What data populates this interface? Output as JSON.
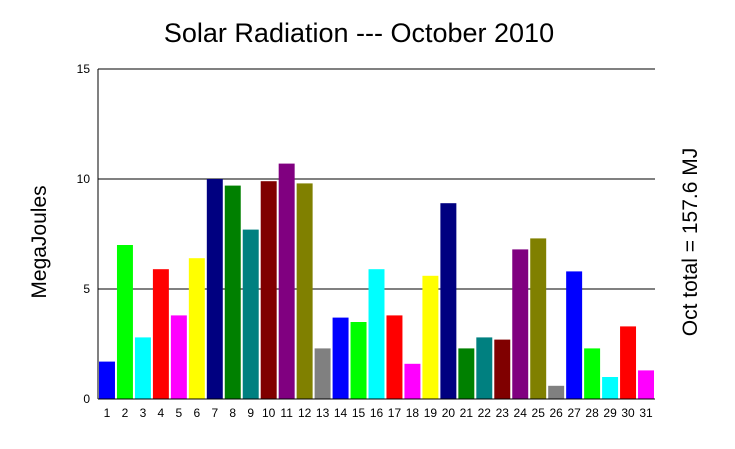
{
  "chart_data": {
    "type": "bar",
    "title": "Solar Radiation --- October 2010",
    "ylabel": "MegaJoules",
    "right_label": "Oct total = 157.6 MJ",
    "xlabel": "",
    "ylim": [
      0,
      15
    ],
    "yticks": [
      0,
      5,
      10,
      15
    ],
    "grid": "horizontal",
    "categories": [
      "1",
      "2",
      "3",
      "4",
      "5",
      "6",
      "7",
      "8",
      "9",
      "10",
      "11",
      "12",
      "13",
      "14",
      "15",
      "16",
      "17",
      "18",
      "19",
      "20",
      "21",
      "22",
      "23",
      "24",
      "25",
      "26",
      "27",
      "28",
      "29",
      "30",
      "31"
    ],
    "values": [
      1.7,
      7.0,
      2.8,
      5.9,
      3.8,
      6.4,
      10.0,
      9.7,
      7.7,
      9.9,
      10.7,
      9.8,
      2.3,
      3.7,
      3.5,
      5.9,
      3.8,
      1.6,
      5.6,
      8.9,
      2.3,
      2.8,
      2.7,
      6.8,
      7.3,
      0.6,
      5.8,
      2.3,
      1.0,
      3.3,
      1.3
    ],
    "colors": [
      "#0000ff",
      "#00ff00",
      "#00ffff",
      "#ff0000",
      "#ff00ff",
      "#ffff00",
      "#000080",
      "#008000",
      "#008080",
      "#800000",
      "#800080",
      "#808000",
      "#808080",
      "#0000ff",
      "#00ff00",
      "#00ffff",
      "#ff0000",
      "#ff00ff",
      "#ffff00",
      "#000080",
      "#008000",
      "#008080",
      "#800000",
      "#800080",
      "#808000",
      "#808080",
      "#0000ff",
      "#00ff00",
      "#00ffff",
      "#ff0000",
      "#ff00ff"
    ]
  }
}
